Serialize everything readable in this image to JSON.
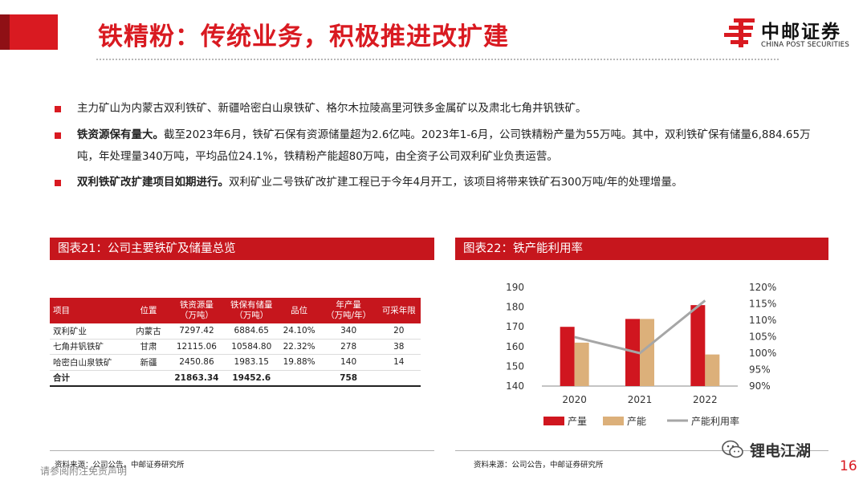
{
  "header": {
    "title": "铁精粉：传统业务，积极推进改扩建",
    "logo_cn": "中邮证券",
    "logo_en": "CHINA POST SECURITIES",
    "brand_color": "#d91a21"
  },
  "bullets": [
    {
      "bold": "",
      "text": "主力矿山为内蒙古双利铁矿、新疆哈密白山泉铁矿、格尔木拉陵高里河铁多金属矿以及肃北七角井钒铁矿。"
    },
    {
      "bold": "铁资源保有量大。",
      "text": "截至2023年6月，铁矿石保有资源储量超为2.6亿吨。2023年1-6月，公司铁精粉产量为55万吨。其中，双利铁矿保有储量6,884.65万吨，年处理量340万吨，平均品位24.1%，铁精粉产能超80万吨，由全资子公司双利矿业负责运营。"
    },
    {
      "bold": "双利铁矿改扩建项目如期进行。",
      "text": "双利矿业二号铁矿改扩建工程已于今年4月开工，该项目将带来铁矿石300万吨/年的处理增量。"
    }
  ],
  "panel1": {
    "title": "图表21：公司主要铁矿及储量总览",
    "source": "资料来源：公司公告，中邮证券研究所",
    "table": {
      "headers": [
        "项目",
        "位置",
        "铁资源量\n（万吨）",
        "铁保有储量\n（万吨）",
        "品位",
        "年产量\n（万吨/年）",
        "可采年限"
      ],
      "rows": [
        [
          "双利矿业",
          "内蒙古",
          "7297.42",
          "6884.65",
          "24.10%",
          "340",
          "20"
        ],
        [
          "七角井钒铁矿",
          "甘肃",
          "12115.06",
          "10584.80",
          "22.32%",
          "278",
          "38"
        ],
        [
          "哈密白山泉铁矿",
          "新疆",
          "2450.86",
          "1983.15",
          "19.88%",
          "140",
          "14"
        ]
      ],
      "total": [
        "合计",
        "",
        "21863.34",
        "19452.6",
        "",
        "758",
        ""
      ]
    }
  },
  "panel2": {
    "title": "图表22：铁产能利用率",
    "source": "资料来源：公司公告，中邮证券研究所"
  },
  "chart_data": {
    "type": "bar",
    "categories": [
      "2020",
      "2021",
      "2022"
    ],
    "series": [
      {
        "name": "产量",
        "kind": "bar",
        "axis": "left",
        "color": "#d0161f",
        "values": [
          170,
          174,
          181
        ]
      },
      {
        "name": "产能",
        "kind": "bar",
        "axis": "left",
        "color": "#dcb07a",
        "values": [
          162,
          174,
          156
        ]
      },
      {
        "name": "产能利用率",
        "kind": "line",
        "axis": "right",
        "color": "#a6a6a6",
        "values": [
          104.9,
          100.0,
          116.0
        ]
      }
    ],
    "ylim_left": [
      140,
      190
    ],
    "yticks_left": [
      140,
      150,
      160,
      170,
      180,
      190
    ],
    "ylim_right": [
      90,
      120
    ],
    "yticks_right": [
      "90%",
      "95%",
      "100%",
      "105%",
      "110%",
      "115%",
      "120%"
    ],
    "grid": false,
    "legend_position": "bottom"
  },
  "footer": {
    "disclaimer": "请参阅附注免责声明",
    "page_number": "16",
    "watermark": "锂电江湖"
  }
}
